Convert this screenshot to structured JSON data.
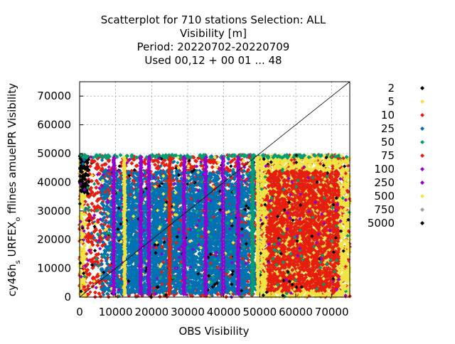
{
  "chart_data": {
    "type": "scatter",
    "title_lines": [
      "Scatterplot for  710 stations Selection: ALL",
      "Visibility [m]",
      "Period: 20220702-20220709",
      "Used  00,12  + 00 01 ... 48"
    ],
    "xlabel": "OBS Visibility",
    "ylabel": "cy46h_s URFEX_o fflines amuelPR Visibility",
    "xlim": [
      0,
      75000
    ],
    "ylim": [
      0,
      75000
    ],
    "x_ticks": [
      0,
      10000,
      20000,
      30000,
      40000,
      50000,
      60000,
      70000
    ],
    "x_tick_labels": [
      "0",
      "10000",
      "20000",
      "30000",
      "40000",
      "50000",
      "60000",
      "70000"
    ],
    "y_ticks": [
      0,
      10000,
      20000,
      30000,
      40000,
      50000,
      60000,
      70000
    ],
    "y_tick_labels": [
      "0",
      "10000",
      "20000",
      "30000",
      "40000",
      "50000",
      "60000",
      "70000"
    ],
    "grid": true,
    "diagonal_line": true,
    "legend_placement": "right",
    "legend": [
      {
        "label": "2",
        "color": "#000000"
      },
      {
        "label": "5",
        "color": "#f0e442"
      },
      {
        "label": "10",
        "color": "#e51e10"
      },
      {
        "label": "25",
        "color": "#0072b2"
      },
      {
        "label": "50",
        "color": "#009e73"
      },
      {
        "label": "75",
        "color": "#e51e10"
      },
      {
        "label": "100",
        "color": "#9400d3"
      },
      {
        "label": "250",
        "color": "#9400d3"
      },
      {
        "label": "500",
        "color": "#f0e442"
      },
      {
        "label": "750",
        "color": "#a0a0a0"
      },
      {
        "label": "5000",
        "color": "#000000"
      }
    ],
    "regions": [
      {
        "x": [
          0,
          75000
        ],
        "y": [
          0,
          49500
        ],
        "level": "10"
      },
      {
        "x": [
          6000,
          50000
        ],
        "y": [
          1000,
          44000
        ],
        "level": "25"
      },
      {
        "x": [
          9000,
          46000
        ],
        "y": [
          1500,
          38000
        ],
        "level": "25"
      },
      {
        "x": [
          50000,
          75000
        ],
        "y": [
          0,
          49500
        ],
        "level": "500"
      },
      {
        "x": [
          52000,
          72000
        ],
        "y": [
          2000,
          44000
        ],
        "level": "10"
      },
      {
        "x": [
          0,
          1500
        ],
        "y": [
          0,
          49500
        ],
        "level": "500"
      },
      {
        "x": [
          0,
          2500
        ],
        "y": [
          36000,
          49500
        ],
        "level": "5000"
      },
      {
        "x": [
          0,
          75000
        ],
        "y": [
          48500,
          49500
        ],
        "level": "50"
      }
    ],
    "column_bands": [
      {
        "x": 9500,
        "level": "100"
      },
      {
        "x": 17000,
        "level": "100"
      },
      {
        "x": 19200,
        "level": "100"
      },
      {
        "x": 29000,
        "level": "100"
      },
      {
        "x": 35000,
        "level": "100"
      },
      {
        "x": 39800,
        "level": "100"
      },
      {
        "x": 44000,
        "level": "100"
      },
      {
        "x": 49500,
        "level": "500"
      },
      {
        "x": 48000,
        "level": "50"
      },
      {
        "x": 12500,
        "level": "500"
      },
      {
        "x": 25000,
        "level": "10"
      }
    ]
  }
}
